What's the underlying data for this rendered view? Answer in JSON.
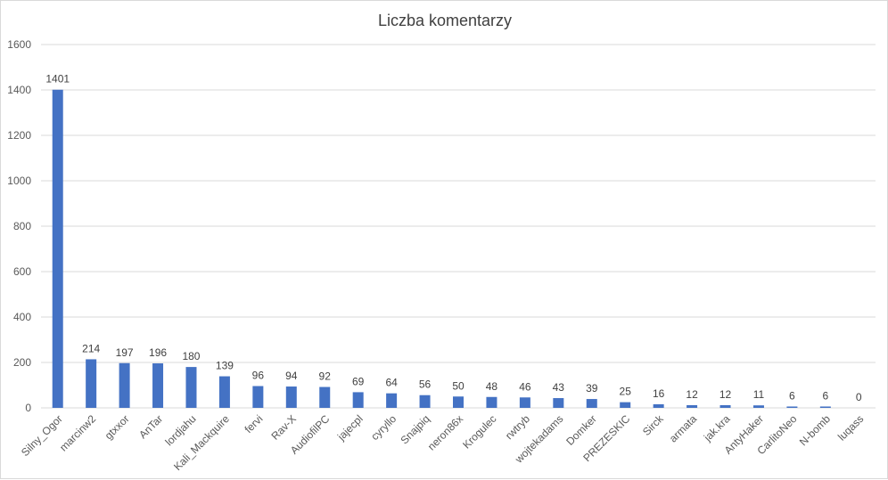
{
  "chart_data": {
    "type": "bar",
    "title": "Liczba komentarzy",
    "xlabel": "",
    "ylabel": "",
    "ylim": [
      0,
      1600
    ],
    "yticks": [
      0,
      200,
      400,
      600,
      800,
      1000,
      1200,
      1400,
      1600
    ],
    "grid": true,
    "data_labels": true,
    "bar_color": "#4472c4",
    "categories": [
      "Silny_Ogor",
      "marcinw2",
      "gtxxor",
      "AnTar",
      "lordjahu",
      "Kali_Mackquire",
      "fervi",
      "Rav-X",
      "AudiofilPC",
      "jajecpl",
      "cyryllo",
      "Snajpiq",
      "neron86x",
      "Krogulec",
      "rwtryb",
      "wojtekadams",
      "Domker",
      "PREZESKIC",
      "Sirck",
      "armata",
      "jak.kra",
      "AntyHaker",
      "CarlitoNeo",
      "N-bomb",
      "luqass"
    ],
    "values": [
      1401,
      214,
      197,
      196,
      180,
      139,
      96,
      94,
      92,
      69,
      64,
      56,
      50,
      48,
      46,
      43,
      39,
      25,
      16,
      12,
      12,
      11,
      6,
      6,
      0
    ]
  }
}
